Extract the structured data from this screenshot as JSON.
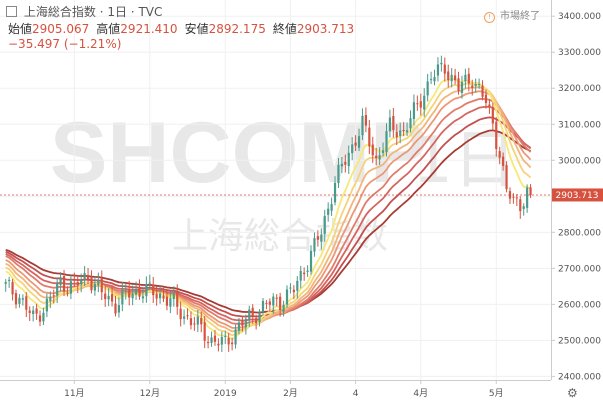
{
  "header": {
    "symbol_name": "上海総合指数",
    "interval": "1日",
    "source": "TVC",
    "separator": "·"
  },
  "ohlc": {
    "open_label": "始値",
    "open_value": "2905.067",
    "high_label": "高値",
    "high_value": "2921.410",
    "low_label": "安値",
    "low_value": "2892.175",
    "close_label": "終値",
    "close_value": "2903.713",
    "change": "−35.497 (−1.21%)"
  },
  "status": {
    "icon": "clock-icon",
    "label": "市場終了"
  },
  "watermark": {
    "ticker": "SHCOMP",
    "period": "1日",
    "name": "上海総合指数"
  },
  "price_tag": {
    "value": "2903.713",
    "color": "#d6523f"
  },
  "settings_icon": "gear-icon",
  "chart_data": {
    "type": "candlestick",
    "y_axis": {
      "ticks": [
        2400,
        2500,
        2600,
        2700,
        2800,
        2900,
        3000,
        3100,
        3200,
        3300,
        3400
      ],
      "tick_labels": [
        "2400.000",
        "2500.000",
        "2600.000",
        "2700.000",
        "2800.000",
        "2900.000",
        "3000.000",
        "3100.000",
        "3200.000",
        "3300.000",
        "3400.000"
      ],
      "range": [
        2390,
        3445
      ]
    },
    "x_axis": {
      "ticks": [
        {
          "i": 20,
          "label": "11月"
        },
        {
          "i": 42,
          "label": "12月"
        },
        {
          "i": 64,
          "label": "2019"
        },
        {
          "i": 83,
          "label": "2月"
        },
        {
          "i": 102,
          "label": "4"
        },
        {
          "i": 121,
          "label": "4月"
        },
        {
          "i": 143,
          "label": "5月"
        }
      ],
      "count": 158
    },
    "close_anchors": [
      [
        0,
        2650
      ],
      [
        4,
        2620
      ],
      [
        8,
        2560
      ],
      [
        12,
        2600
      ],
      [
        16,
        2660
      ],
      [
        20,
        2650
      ],
      [
        24,
        2680
      ],
      [
        28,
        2630
      ],
      [
        32,
        2600
      ],
      [
        36,
        2630
      ],
      [
        40,
        2640
      ],
      [
        44,
        2630
      ],
      [
        48,
        2610
      ],
      [
        52,
        2570
      ],
      [
        56,
        2540
      ],
      [
        60,
        2500
      ],
      [
        64,
        2490
      ],
      [
        68,
        2540
      ],
      [
        72,
        2570
      ],
      [
        76,
        2600
      ],
      [
        80,
        2610
      ],
      [
        84,
        2640
      ],
      [
        88,
        2720
      ],
      [
        92,
        2800
      ],
      [
        96,
        2940
      ],
      [
        100,
        3020
      ],
      [
        104,
        3100
      ],
      [
        108,
        3000
      ],
      [
        112,
        3090
      ],
      [
        116,
        3080
      ],
      [
        120,
        3150
      ],
      [
        124,
        3230
      ],
      [
        128,
        3260
      ],
      [
        132,
        3200
      ],
      [
        136,
        3230
      ],
      [
        140,
        3160
      ],
      [
        142,
        3100
      ],
      [
        144,
        3020
      ],
      [
        146,
        2910
      ],
      [
        148,
        2890
      ],
      [
        150,
        2880
      ],
      [
        152,
        2910
      ],
      [
        154,
        2903.713
      ]
    ],
    "moving_average_ribbon": {
      "periods": [
        4,
        6,
        8,
        10,
        13,
        16,
        20,
        25
      ],
      "colors": [
        "#f7e878",
        "#f6d27a",
        "#f2b57a",
        "#ec9876",
        "#e17c6b",
        "#d56560",
        "#c55050",
        "#a73c35"
      ],
      "initial_values": [
        2700,
        2710,
        2720,
        2730,
        2740,
        2745,
        2750,
        2755
      ]
    },
    "last_close": 2903.713,
    "up_color": "#4a9a8c",
    "down_color": "#d6523f"
  }
}
